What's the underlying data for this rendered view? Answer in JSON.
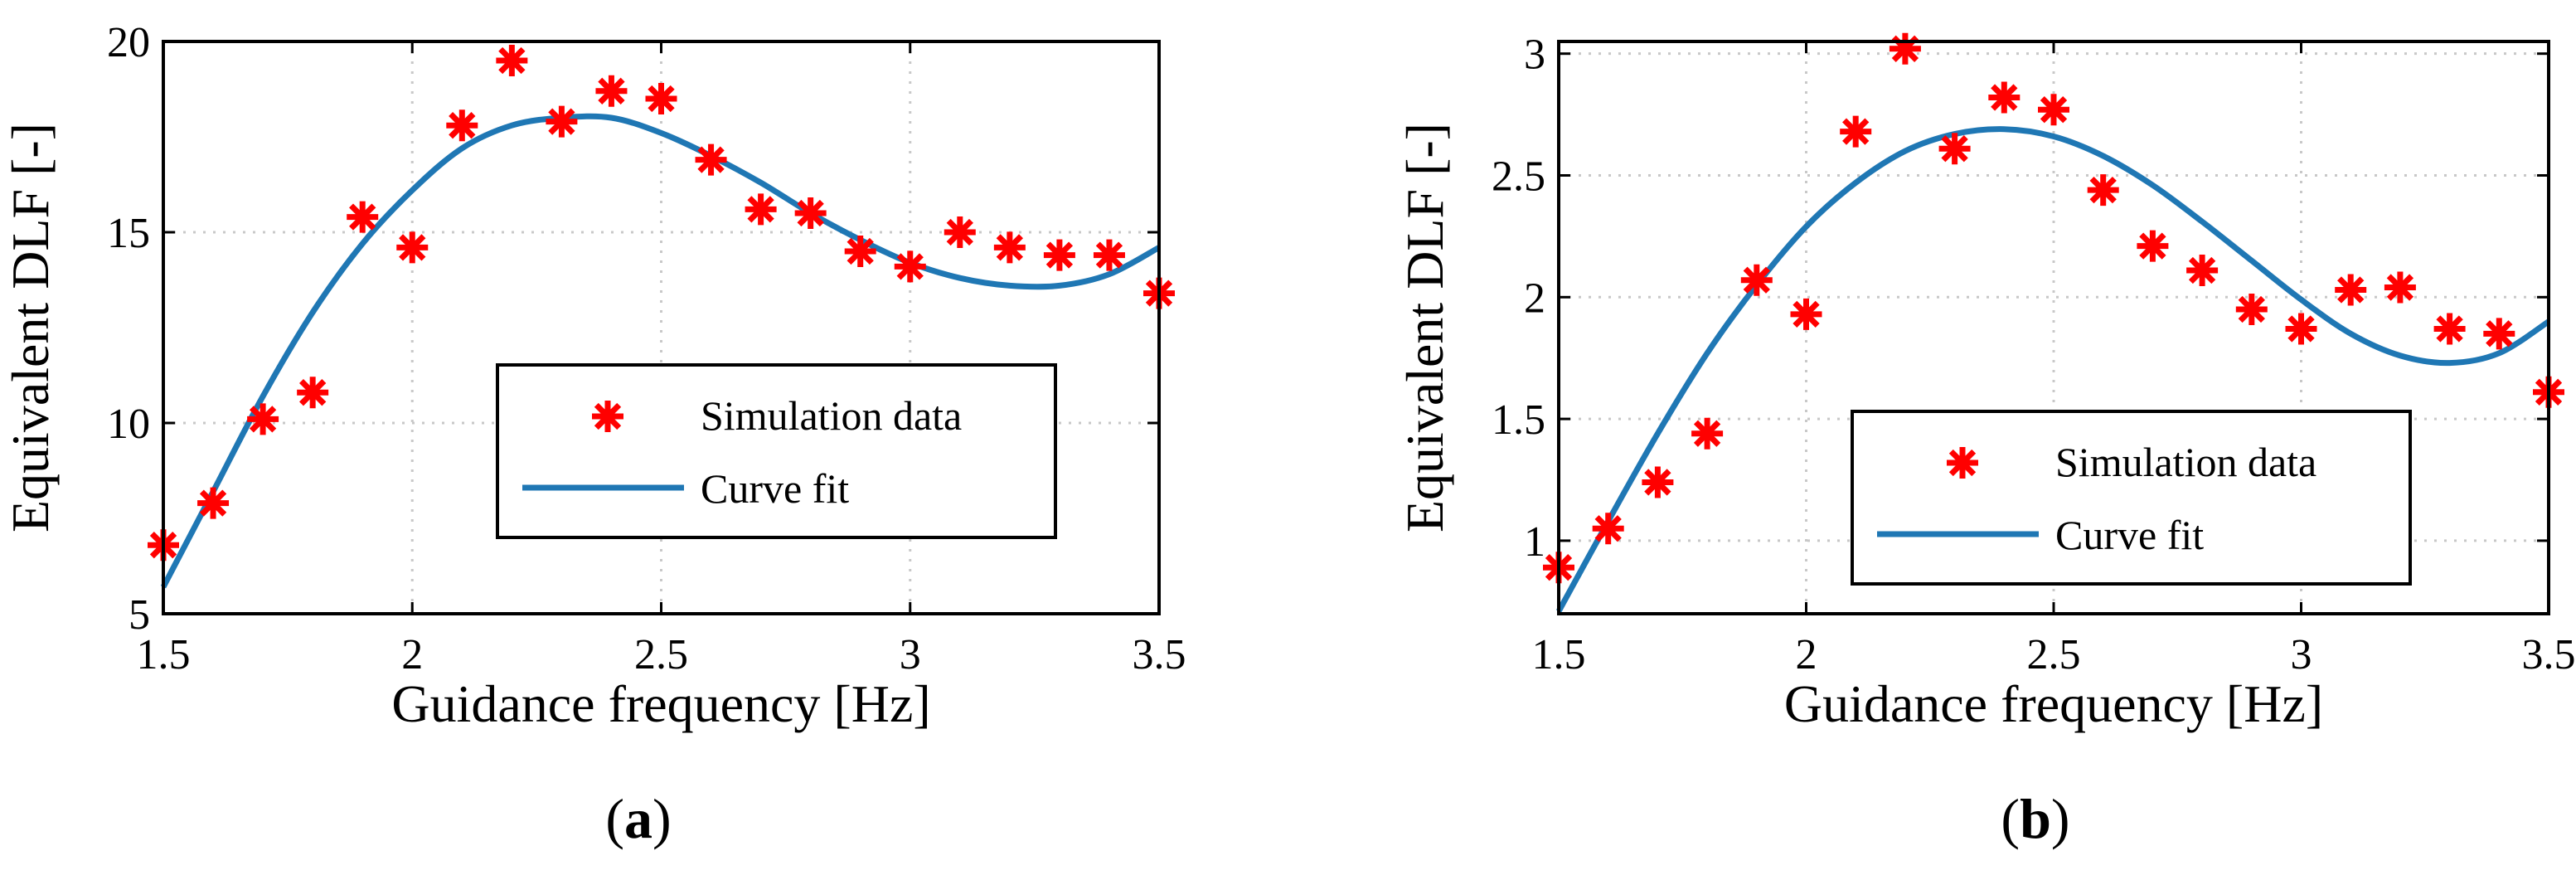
{
  "chart_data": [
    {
      "type": "scatter",
      "panel_label": {
        "open": "(",
        "letter": "a",
        "close": ")"
      },
      "xlabel": "Guidance frequency [Hz]",
      "ylabel": "Equivalent DLF [-]",
      "xlim": [
        1.5,
        3.5
      ],
      "ylim": [
        5,
        20
      ],
      "xticks": [
        1.5,
        2,
        2.5,
        3,
        3.5
      ],
      "xtick_labels": [
        "1.5",
        "2",
        "2.5",
        "3",
        "3.5"
      ],
      "yticks": [
        5,
        10,
        15,
        20
      ],
      "ytick_labels": [
        "5",
        "10",
        "15",
        "20"
      ],
      "grid": true,
      "legend": {
        "position": "center-right",
        "entries": [
          "Simulation data",
          "Curve fit"
        ]
      },
      "series": [
        {
          "name": "Simulation data",
          "marker": "asterisk",
          "color": "#ff0000",
          "x": [
            1.5,
            1.6,
            1.7,
            1.8,
            1.9,
            2.0,
            2.1,
            2.2,
            2.3,
            2.4,
            2.5,
            2.6,
            2.7,
            2.8,
            2.9,
            3.0,
            3.1,
            3.2,
            3.3,
            3.4,
            3.5
          ],
          "y": [
            6.8,
            7.9,
            10.1,
            10.8,
            15.4,
            14.6,
            17.8,
            19.5,
            17.9,
            18.7,
            18.5,
            16.9,
            15.6,
            15.5,
            14.5,
            14.1,
            15.0,
            14.6,
            14.4,
            14.4,
            13.4
          ]
        },
        {
          "name": "Curve fit",
          "line": true,
          "color": "#1f77b4",
          "x": [
            1.5,
            1.6,
            1.7,
            1.8,
            1.9,
            2.0,
            2.1,
            2.2,
            2.3,
            2.4,
            2.5,
            2.6,
            2.7,
            2.8,
            2.9,
            3.0,
            3.1,
            3.2,
            3.3,
            3.4,
            3.5
          ],
          "y": [
            5.7,
            8.2,
            10.7,
            12.9,
            14.7,
            16.1,
            17.2,
            17.8,
            18.0,
            18.0,
            17.6,
            17.0,
            16.3,
            15.5,
            14.8,
            14.2,
            13.8,
            13.6,
            13.6,
            13.9,
            14.6
          ]
        }
      ]
    },
    {
      "type": "scatter",
      "panel_label": {
        "open": "(",
        "letter": "b",
        "close": ")"
      },
      "xlabel": "Guidance frequency [Hz]",
      "ylabel": "Equivalent DLF [-]",
      "xlim": [
        1.5,
        3.5
      ],
      "ylim": [
        0.7,
        3.05
      ],
      "xticks": [
        1.5,
        2,
        2.5,
        3,
        3.5
      ],
      "xtick_labels": [
        "1.5",
        "2",
        "2.5",
        "3",
        "3.5"
      ],
      "yticks": [
        1,
        1.5,
        2,
        2.5,
        3
      ],
      "ytick_labels": [
        "1",
        "1.5",
        "2",
        "2.5",
        "3"
      ],
      "grid": true,
      "legend": {
        "position": "lower-right",
        "entries": [
          "Simulation data",
          "Curve fit"
        ]
      },
      "series": [
        {
          "name": "Simulation data",
          "marker": "asterisk",
          "color": "#ff0000",
          "x": [
            1.5,
            1.6,
            1.7,
            1.8,
            1.9,
            2.0,
            2.1,
            2.2,
            2.3,
            2.4,
            2.5,
            2.6,
            2.7,
            2.8,
            2.9,
            3.0,
            3.1,
            3.2,
            3.3,
            3.4,
            3.5
          ],
          "y": [
            0.89,
            1.05,
            1.24,
            1.44,
            2.07,
            1.93,
            2.68,
            3.02,
            2.61,
            2.82,
            2.77,
            2.44,
            2.21,
            2.11,
            1.95,
            1.87,
            2.03,
            2.04,
            1.87,
            1.85,
            1.61
          ]
        },
        {
          "name": "Curve fit",
          "line": true,
          "color": "#1f77b4",
          "x": [
            1.5,
            1.6,
            1.7,
            1.8,
            1.9,
            2.0,
            2.1,
            2.2,
            2.3,
            2.4,
            2.5,
            2.6,
            2.7,
            2.8,
            2.9,
            3.0,
            3.1,
            3.2,
            3.3,
            3.4,
            3.5
          ],
          "y": [
            0.71,
            1.08,
            1.44,
            1.77,
            2.05,
            2.29,
            2.47,
            2.6,
            2.67,
            2.69,
            2.66,
            2.58,
            2.46,
            2.31,
            2.15,
            1.99,
            1.85,
            1.76,
            1.73,
            1.77,
            1.9
          ]
        }
      ]
    }
  ]
}
